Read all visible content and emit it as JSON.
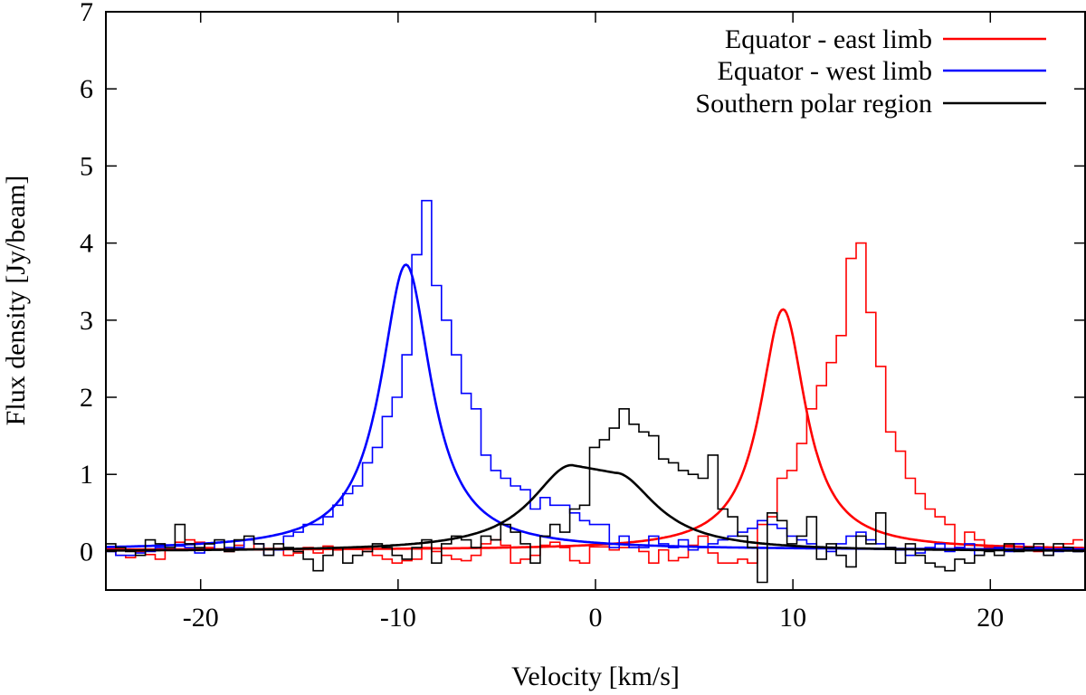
{
  "chart_data": {
    "type": "line",
    "title": "",
    "xlabel": "Velocity [km/s]",
    "ylabel": "Flux density [Jy/beam]",
    "xlim": [
      -24.8,
      24.8
    ],
    "ylim": [
      -0.5,
      7
    ],
    "xticks": [
      -20,
      -10,
      0,
      10,
      20
    ],
    "xtick_labels": [
      "-20",
      "-10",
      "0",
      "10",
      "20"
    ],
    "yticks": [
      0,
      1,
      2,
      3,
      4,
      5,
      6,
      7
    ],
    "ytick_labels": [
      "0",
      "1",
      "2",
      "3",
      "4",
      "5",
      "6",
      "7"
    ],
    "grid": false,
    "legend_position": "top-right",
    "series": [
      {
        "name": "Equator - east limb",
        "color": "#ff0000",
        "fit": {
          "model": "lorentzian",
          "center": 9.5,
          "amplitude": 3.12,
          "hwhm": 1.4,
          "baseline": 0.02
        },
        "hist_x0": -24.8,
        "hist_dx": 0.5,
        "hist_values": [
          0.05,
          -0.05,
          -0.08,
          0.0,
          -0.04,
          -0.1,
          0.08,
          0.12,
          0.15,
          0.12,
          0.05,
          0.03,
          0.0,
          0.08,
          0.15,
          0.02,
          0.04,
          0.04,
          -0.05,
          -0.02,
          0.05,
          -0.02,
          0.07,
          0.02,
          0.05,
          0.03,
          0.0,
          -0.05,
          -0.1,
          -0.15,
          -0.12,
          -0.1,
          0.05,
          0.0,
          -0.05,
          -0.1,
          -0.12,
          -0.05,
          0.1,
          0.15,
          0.08,
          -0.15,
          -0.1,
          -0.05,
          0.08,
          0.12,
          0.05,
          -0.12,
          -0.15,
          0.06,
          0.06,
          0.02,
          0.05,
          0.08,
          0.0,
          -0.15,
          0.02,
          -0.12,
          -0.08,
          0.08,
          0.2,
          -0.02,
          -0.15,
          -0.15,
          -0.1,
          -0.15,
          0.35,
          0.45,
          0.95,
          1.05,
          1.4,
          1.85,
          2.15,
          2.45,
          2.8,
          3.8,
          4.0,
          3.1,
          2.4,
          1.55,
          1.3,
          0.95,
          0.75,
          0.55,
          0.45,
          0.35,
          0.05,
          0.25,
          0.15,
          0.05,
          0.02,
          0.08,
          0.1,
          0.05,
          0.0,
          0.02,
          0.05,
          0.1,
          0.15
        ]
      },
      {
        "name": "Equator - west limb",
        "color": "#0000ff",
        "fit": {
          "model": "lorentzian",
          "center": -9.6,
          "amplitude": 3.7,
          "hwhm": 1.55,
          "baseline": 0.02
        },
        "hist_x0": -24.8,
        "hist_dx": 0.5,
        "hist_values": [
          0.0,
          -0.05,
          -0.05,
          -0.02,
          0.0,
          0.05,
          0.02,
          0.07,
          0.05,
          -0.02,
          0.1,
          0.02,
          0.05,
          0.05,
          0.15,
          0.1,
          -0.05,
          0.02,
          0.2,
          0.25,
          0.35,
          0.35,
          0.45,
          0.6,
          0.75,
          0.85,
          1.15,
          1.35,
          1.75,
          2.0,
          2.55,
          3.85,
          4.55,
          3.45,
          3.0,
          2.55,
          2.05,
          1.85,
          1.25,
          1.05,
          0.95,
          0.85,
          0.8,
          0.55,
          0.7,
          0.6,
          0.6,
          0.5,
          0.4,
          0.35,
          0.35,
          0.05,
          0.2,
          0.05,
          0.05,
          0.2,
          0.1,
          0.05,
          0.15,
          0.02,
          0.05,
          0.1,
          0.15,
          0.2,
          0.25,
          0.3,
          0.4,
          0.35,
          0.3,
          0.2,
          0.15,
          0.1,
          0.05,
          0.0,
          0.1,
          0.2,
          0.25,
          0.15,
          0.1,
          0.05,
          0.02,
          -0.05,
          -0.02,
          0.05,
          0.1,
          0.0,
          0.05,
          0.1,
          -0.05,
          0.02,
          0.05,
          0.0,
          0.1,
          0.05,
          0.05,
          -0.05,
          0.0,
          0.05,
          0.0
        ]
      },
      {
        "name": "Southern polar region",
        "color": "#000000",
        "fit": {
          "model": "split-lorentzian",
          "amplitude": 1.12,
          "center": -1.2,
          "flat_to": 1.0,
          "level_at_flat_end": 1.02,
          "hwhm": 2.5,
          "baseline": 0.0
        },
        "hist_x0": -24.8,
        "hist_dx": 0.5,
        "hist_values": [
          0.1,
          0.05,
          0.0,
          -0.05,
          0.15,
          0.1,
          0.05,
          0.35,
          0.1,
          0.05,
          0.1,
          0.15,
          0.0,
          0.15,
          0.2,
          0.1,
          -0.05,
          0.1,
          0.05,
          0.0,
          -0.1,
          -0.25,
          -0.05,
          0.05,
          -0.15,
          -0.05,
          0.0,
          0.1,
          0.05,
          -0.05,
          -0.1,
          0.05,
          0.15,
          -0.15,
          0.1,
          0.2,
          0.15,
          0.05,
          0.2,
          0.15,
          0.35,
          0.25,
          0.1,
          -0.15,
          0.2,
          0.35,
          0.25,
          0.55,
          0.6,
          1.35,
          1.45,
          1.6,
          1.85,
          1.65,
          1.55,
          1.5,
          1.2,
          1.15,
          1.05,
          1.0,
          0.95,
          1.25,
          0.55,
          0.45,
          0.2,
          0.05,
          -0.4,
          0.5,
          0.4,
          0.1,
          0.2,
          0.45,
          -0.1,
          0.1,
          -0.05,
          -0.2,
          0.2,
          0.1,
          0.5,
          0.05,
          -0.15,
          0.1,
          -0.05,
          -0.15,
          -0.2,
          -0.25,
          -0.1,
          -0.15,
          -0.05,
          0.0,
          -0.05,
          0.1,
          0.0,
          0.05,
          0.1,
          -0.05,
          0.1,
          0.05,
          0.0
        ]
      }
    ]
  }
}
